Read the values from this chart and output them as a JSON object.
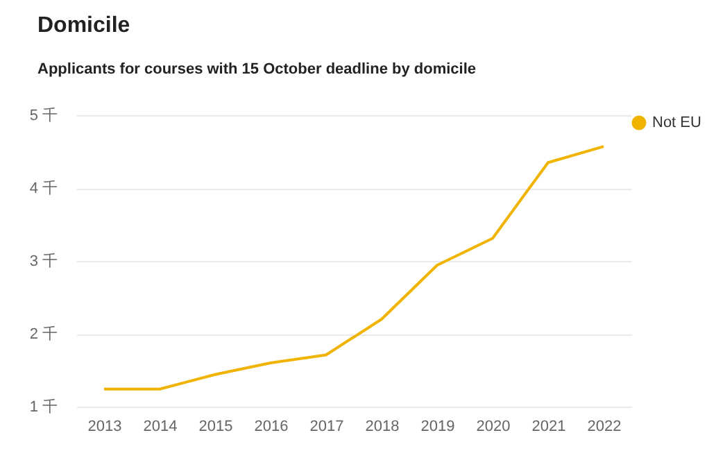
{
  "chart_data": {
    "type": "line",
    "title": "Domicile",
    "subtitle": "Applicants for courses with 15 October deadline by domicile",
    "categories": [
      "2013",
      "2014",
      "2015",
      "2016",
      "2017",
      "2018",
      "2019",
      "2020",
      "2021",
      "2022"
    ],
    "series": [
      {
        "name": "Not EU",
        "color": "#f0b400",
        "values": [
          1.24,
          1.24,
          1.44,
          1.6,
          1.71,
          2.2,
          2.94,
          3.31,
          4.35,
          4.57
        ]
      }
    ],
    "ylim": [
      1,
      5
    ],
    "yticks": [
      {
        "value": 1,
        "label": "1 千"
      },
      {
        "value": 2,
        "label": "2 千"
      },
      {
        "value": 3,
        "label": "3 千"
      },
      {
        "value": 4,
        "label": "4 千"
      },
      {
        "value": 5,
        "label": "5 千"
      }
    ],
    "grid": "y",
    "legend": "right",
    "marker": "none",
    "line_style": "solid"
  }
}
